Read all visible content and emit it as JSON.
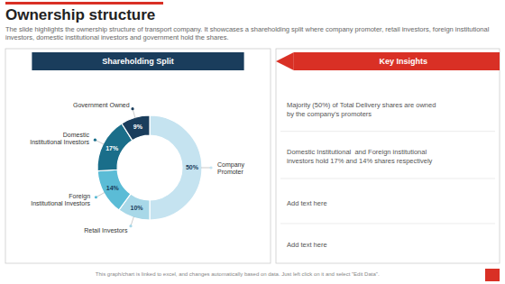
{
  "chart_data": {
    "type": "pie",
    "title": "Ownership structure",
    "subtitle": "The slide highlights the ownership structure of transport company. It showcases a shareholding split where company promoter, retail investors, foreign institutional investors, domestic institutional investors and government hold the shares.",
    "categories": [
      "Company\nPromoter",
      "Retail Investors",
      "Foreign\nInstitutional Investors",
      "Domestic\nInstitutional Investors",
      "Government Owned"
    ],
    "values": [
      50,
      10,
      14,
      17,
      9
    ],
    "value_labels": [
      "50%",
      "10%",
      "14%",
      "17%",
      "9%"
    ],
    "colors": [
      "#c5e3f0",
      "#a8d8e8",
      "#5bbcd6",
      "#1a6e8a",
      "#1a3d5c"
    ],
    "data_labels": true,
    "annotations": [
      "Shareholding Split",
      "Key Insights",
      "Majority (50%) of Total Delivery shares are owned\nby the company’s promoters",
      "Domestic Institutional  and Foreign institutional\ninvestors hold 17% and 14% shares respectively",
      "Add text here",
      "Add text here",
      "This graph/chart is linked to excel, and changes automatically based on data. Just left click on it and select \"Edit Data\"."
    ]
  }
}
